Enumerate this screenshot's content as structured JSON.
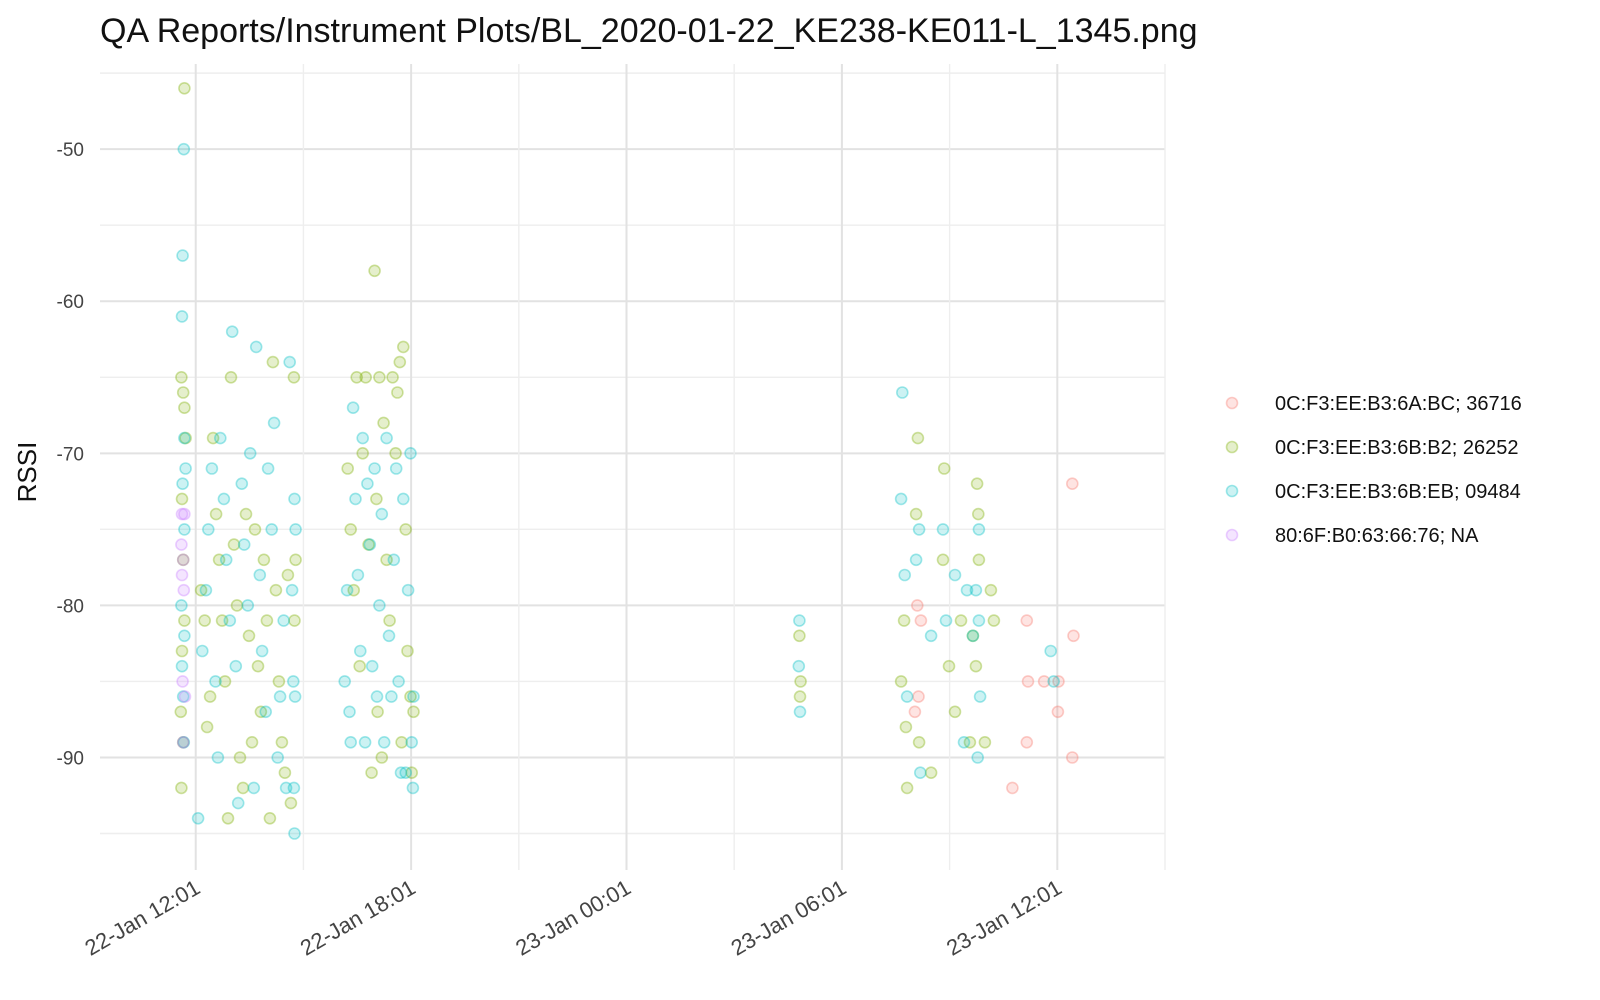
{
  "chart_data": {
    "type": "scatter",
    "title": "QA Reports/Instrument Plots/BL_2020-01-22_KE238-KE011-L_1345.png",
    "xlabel": "",
    "ylabel": "RSSI",
    "x_is_time": true,
    "xlim": [
      "2020-01-22T09:21",
      "2020-01-23T15:01"
    ],
    "ylim": [
      -97.4,
      -44.4
    ],
    "x_ticks": [
      {
        "value": "2020-01-22T12:01",
        "label": "22-Jan 12:01"
      },
      {
        "value": "2020-01-22T18:01",
        "label": "22-Jan 18:01"
      },
      {
        "value": "2020-01-23T00:01",
        "label": "23-Jan 00:01"
      },
      {
        "value": "2020-01-23T06:01",
        "label": "23-Jan 06:01"
      },
      {
        "value": "2020-01-23T12:01",
        "label": "23-Jan 12:01"
      }
    ],
    "y_ticks": [
      {
        "value": -50,
        "label": "-50"
      },
      {
        "value": -60,
        "label": "-60"
      },
      {
        "value": -70,
        "label": "-70"
      },
      {
        "value": -80,
        "label": "-80"
      },
      {
        "value": -90,
        "label": "-90"
      }
    ],
    "grid": true,
    "legend_position": "right",
    "point_opacity": 0.2,
    "series": [
      {
        "name": "0C:F3:EE:B3:6A:BC; 36716",
        "color": "#F8766D",
        "points": [
          [
            "2020-01-23T08:07",
            -80
          ],
          [
            "2020-01-23T08:13",
            -81
          ],
          [
            "2020-01-23T08:09",
            -86
          ],
          [
            "2020-01-23T08:03",
            -87
          ],
          [
            "2020-01-23T10:46",
            -92
          ],
          [
            "2020-01-23T11:10",
            -81
          ],
          [
            "2020-01-23T11:12",
            -85
          ],
          [
            "2020-01-23T11:10",
            -89
          ],
          [
            "2020-01-23T11:39",
            -85
          ],
          [
            "2020-01-23T12:02",
            -87
          ],
          [
            "2020-01-23T12:03",
            -85
          ],
          [
            "2020-01-23T12:28",
            -82
          ],
          [
            "2020-01-23T12:26",
            -72
          ],
          [
            "2020-01-23T12:26",
            -90
          ]
        ]
      },
      {
        "name": "0C:F3:EE:B3:6B:B2; 26252",
        "color": "#7CAE00",
        "points": [
          [
            "2020-01-22T11:42",
            -46
          ],
          [
            "2020-01-22T11:37",
            -65
          ],
          [
            "2020-01-22T11:40",
            -66
          ],
          [
            "2020-01-22T11:42",
            -67
          ],
          [
            "2020-01-22T11:44",
            -69
          ],
          [
            "2020-01-22T11:38",
            -73
          ],
          [
            "2020-01-22T11:40",
            -77
          ],
          [
            "2020-01-22T11:42",
            -81
          ],
          [
            "2020-01-22T11:38",
            -83
          ],
          [
            "2020-01-22T11:36",
            -87
          ],
          [
            "2020-01-22T11:40",
            -89
          ],
          [
            "2020-01-22T11:37",
            -92
          ],
          [
            "2020-01-22T12:10",
            -79
          ],
          [
            "2020-01-22T12:16",
            -81
          ],
          [
            "2020-01-22T12:20",
            -88
          ],
          [
            "2020-01-22T12:25",
            -86
          ],
          [
            "2020-01-22T12:30",
            -69
          ],
          [
            "2020-01-22T12:35",
            -74
          ],
          [
            "2020-01-22T12:40",
            -77
          ],
          [
            "2020-01-22T12:45",
            -81
          ],
          [
            "2020-01-22T12:50",
            -85
          ],
          [
            "2020-01-22T12:55",
            -94
          ],
          [
            "2020-01-22T13:00",
            -65
          ],
          [
            "2020-01-22T13:05",
            -76
          ],
          [
            "2020-01-22T13:10",
            -80
          ],
          [
            "2020-01-22T13:15",
            -90
          ],
          [
            "2020-01-22T13:20",
            -92
          ],
          [
            "2020-01-22T13:25",
            -74
          ],
          [
            "2020-01-22T13:30",
            -82
          ],
          [
            "2020-01-22T13:35",
            -89
          ],
          [
            "2020-01-22T13:40",
            -75
          ],
          [
            "2020-01-22T13:45",
            -84
          ],
          [
            "2020-01-22T13:50",
            -87
          ],
          [
            "2020-01-22T13:55",
            -77
          ],
          [
            "2020-01-22T14:00",
            -81
          ],
          [
            "2020-01-22T14:05",
            -94
          ],
          [
            "2020-01-22T14:10",
            -64
          ],
          [
            "2020-01-22T14:15",
            -79
          ],
          [
            "2020-01-22T14:20",
            -85
          ],
          [
            "2020-01-22T14:25",
            -89
          ],
          [
            "2020-01-22T14:30",
            -91
          ],
          [
            "2020-01-22T14:35",
            -78
          ],
          [
            "2020-01-22T14:40",
            -93
          ],
          [
            "2020-01-22T14:45",
            -65
          ],
          [
            "2020-01-22T14:48",
            -77
          ],
          [
            "2020-01-22T14:46",
            -81
          ],
          [
            "2020-01-22T16:15",
            -71
          ],
          [
            "2020-01-22T16:20",
            -75
          ],
          [
            "2020-01-22T16:25",
            -79
          ],
          [
            "2020-01-22T16:30",
            -65
          ],
          [
            "2020-01-22T16:35",
            -84
          ],
          [
            "2020-01-22T16:40",
            -70
          ],
          [
            "2020-01-22T16:45",
            -65
          ],
          [
            "2020-01-22T16:50",
            -76
          ],
          [
            "2020-01-22T16:55",
            -91
          ],
          [
            "2020-01-22T17:00",
            -58
          ],
          [
            "2020-01-22T17:03",
            -73
          ],
          [
            "2020-01-22T17:05",
            -87
          ],
          [
            "2020-01-22T17:08",
            -65
          ],
          [
            "2020-01-22T17:12",
            -90
          ],
          [
            "2020-01-22T17:15",
            -68
          ],
          [
            "2020-01-22T17:20",
            -77
          ],
          [
            "2020-01-22T17:25",
            -81
          ],
          [
            "2020-01-22T17:30",
            -65
          ],
          [
            "2020-01-22T17:35",
            -70
          ],
          [
            "2020-01-22T17:38",
            -66
          ],
          [
            "2020-01-22T17:42",
            -64
          ],
          [
            "2020-01-22T17:45",
            -89
          ],
          [
            "2020-01-22T17:48",
            -63
          ],
          [
            "2020-01-22T17:52",
            -75
          ],
          [
            "2020-01-22T17:55",
            -83
          ],
          [
            "2020-01-22T18:00",
            -86
          ],
          [
            "2020-01-22T18:05",
            -87
          ],
          [
            "2020-01-22T18:02",
            -91
          ],
          [
            "2020-01-23T04:50",
            -82
          ],
          [
            "2020-01-23T04:52",
            -85
          ],
          [
            "2020-01-23T04:51",
            -86
          ],
          [
            "2020-01-23T07:40",
            -85
          ],
          [
            "2020-01-23T07:45",
            -81
          ],
          [
            "2020-01-23T07:48",
            -88
          ],
          [
            "2020-01-23T07:50",
            -92
          ],
          [
            "2020-01-23T08:05",
            -74
          ],
          [
            "2020-01-23T08:08",
            -69
          ],
          [
            "2020-01-23T08:10",
            -89
          ],
          [
            "2020-01-23T08:30",
            -91
          ],
          [
            "2020-01-23T08:50",
            -77
          ],
          [
            "2020-01-23T08:52",
            -71
          ],
          [
            "2020-01-23T09:00",
            -84
          ],
          [
            "2020-01-23T09:10",
            -87
          ],
          [
            "2020-01-23T09:20",
            -81
          ],
          [
            "2020-01-23T09:35",
            -89
          ],
          [
            "2020-01-23T09:40",
            -82
          ],
          [
            "2020-01-23T09:45",
            -84
          ],
          [
            "2020-01-23T09:47",
            -72
          ],
          [
            "2020-01-23T09:49",
            -74
          ],
          [
            "2020-01-23T09:50",
            -77
          ],
          [
            "2020-01-23T10:00",
            -89
          ],
          [
            "2020-01-23T10:10",
            -79
          ],
          [
            "2020-01-23T10:15",
            -81
          ]
        ]
      },
      {
        "name": "0C:F3:EE:B3:6B:EB; 09484",
        "color": "#00BFC4",
        "points": [
          [
            "2020-01-22T11:41",
            -50
          ],
          [
            "2020-01-22T11:39",
            -57
          ],
          [
            "2020-01-22T11:38",
            -61
          ],
          [
            "2020-01-22T11:42",
            -69
          ],
          [
            "2020-01-22T11:44",
            -71
          ],
          [
            "2020-01-22T11:39",
            -72
          ],
          [
            "2020-01-22T11:42",
            -75
          ],
          [
            "2020-01-22T11:37",
            -80
          ],
          [
            "2020-01-22T11:42",
            -82
          ],
          [
            "2020-01-22T11:38",
            -84
          ],
          [
            "2020-01-22T11:40",
            -86
          ],
          [
            "2020-01-22T11:41",
            -89
          ],
          [
            "2020-01-22T12:05",
            -94
          ],
          [
            "2020-01-22T12:12",
            -83
          ],
          [
            "2020-01-22T12:18",
            -79
          ],
          [
            "2020-01-22T12:22",
            -75
          ],
          [
            "2020-01-22T12:28",
            -71
          ],
          [
            "2020-01-22T12:34",
            -85
          ],
          [
            "2020-01-22T12:38",
            -90
          ],
          [
            "2020-01-22T12:42",
            -69
          ],
          [
            "2020-01-22T12:48",
            -73
          ],
          [
            "2020-01-22T12:52",
            -77
          ],
          [
            "2020-01-22T12:58",
            -81
          ],
          [
            "2020-01-22T13:02",
            -62
          ],
          [
            "2020-01-22T13:08",
            -84
          ],
          [
            "2020-01-22T13:12",
            -93
          ],
          [
            "2020-01-22T13:18",
            -72
          ],
          [
            "2020-01-22T13:22",
            -76
          ],
          [
            "2020-01-22T13:28",
            -80
          ],
          [
            "2020-01-22T13:32",
            -70
          ],
          [
            "2020-01-22T13:38",
            -92
          ],
          [
            "2020-01-22T13:42",
            -63
          ],
          [
            "2020-01-22T13:48",
            -78
          ],
          [
            "2020-01-22T13:52",
            -83
          ],
          [
            "2020-01-22T13:58",
            -87
          ],
          [
            "2020-01-22T14:02",
            -71
          ],
          [
            "2020-01-22T14:08",
            -75
          ],
          [
            "2020-01-22T14:12",
            -68
          ],
          [
            "2020-01-22T14:18",
            -90
          ],
          [
            "2020-01-22T14:22",
            -86
          ],
          [
            "2020-01-22T14:28",
            -81
          ],
          [
            "2020-01-22T14:32",
            -92
          ],
          [
            "2020-01-22T14:38",
            -64
          ],
          [
            "2020-01-22T14:42",
            -79
          ],
          [
            "2020-01-22T14:44",
            -85
          ],
          [
            "2020-01-22T14:46",
            -73
          ],
          [
            "2020-01-22T14:48",
            -75
          ],
          [
            "2020-01-22T14:47",
            -86
          ],
          [
            "2020-01-22T14:45",
            -92
          ],
          [
            "2020-01-22T14:46",
            -95
          ],
          [
            "2020-01-22T16:10",
            -85
          ],
          [
            "2020-01-22T16:14",
            -79
          ],
          [
            "2020-01-22T16:18",
            -87
          ],
          [
            "2020-01-22T16:20",
            -89
          ],
          [
            "2020-01-22T16:24",
            -67
          ],
          [
            "2020-01-22T16:28",
            -73
          ],
          [
            "2020-01-22T16:32",
            -78
          ],
          [
            "2020-01-22T16:36",
            -83
          ],
          [
            "2020-01-22T16:40",
            -69
          ],
          [
            "2020-01-22T16:44",
            -89
          ],
          [
            "2020-01-22T16:48",
            -72
          ],
          [
            "2020-01-22T16:52",
            -76
          ],
          [
            "2020-01-22T16:56",
            -84
          ],
          [
            "2020-01-22T17:00",
            -71
          ],
          [
            "2020-01-22T17:04",
            -86
          ],
          [
            "2020-01-22T17:08",
            -80
          ],
          [
            "2020-01-22T17:12",
            -74
          ],
          [
            "2020-01-22T17:16",
            -89
          ],
          [
            "2020-01-22T17:20",
            -69
          ],
          [
            "2020-01-22T17:24",
            -82
          ],
          [
            "2020-01-22T17:28",
            -86
          ],
          [
            "2020-01-22T17:32",
            -77
          ],
          [
            "2020-01-22T17:36",
            -71
          ],
          [
            "2020-01-22T17:40",
            -85
          ],
          [
            "2020-01-22T17:44",
            -91
          ],
          [
            "2020-01-22T17:48",
            -73
          ],
          [
            "2020-01-22T17:52",
            -91
          ],
          [
            "2020-01-22T17:56",
            -79
          ],
          [
            "2020-01-22T18:00",
            -70
          ],
          [
            "2020-01-22T18:02",
            -89
          ],
          [
            "2020-01-22T18:04",
            -92
          ],
          [
            "2020-01-22T18:05",
            -86
          ],
          [
            "2020-01-23T04:50",
            -81
          ],
          [
            "2020-01-23T04:49",
            -84
          ],
          [
            "2020-01-23T04:51",
            -87
          ],
          [
            "2020-01-23T07:42",
            -66
          ],
          [
            "2020-01-23T07:40",
            -73
          ],
          [
            "2020-01-23T07:46",
            -78
          ],
          [
            "2020-01-23T07:50",
            -86
          ],
          [
            "2020-01-23T08:05",
            -77
          ],
          [
            "2020-01-23T08:10",
            -75
          ],
          [
            "2020-01-23T08:12",
            -91
          ],
          [
            "2020-01-23T08:30",
            -82
          ],
          [
            "2020-01-23T08:50",
            -75
          ],
          [
            "2020-01-23T08:55",
            -81
          ],
          [
            "2020-01-23T09:10",
            -78
          ],
          [
            "2020-01-23T09:25",
            -89
          ],
          [
            "2020-01-23T09:30",
            -79
          ],
          [
            "2020-01-23T09:40",
            -82
          ],
          [
            "2020-01-23T09:45",
            -79
          ],
          [
            "2020-01-23T09:50",
            -81
          ],
          [
            "2020-01-23T09:52",
            -86
          ],
          [
            "2020-01-23T09:48",
            -90
          ],
          [
            "2020-01-23T09:50",
            -75
          ],
          [
            "2020-01-23T11:50",
            -83
          ],
          [
            "2020-01-23T11:55",
            -85
          ]
        ]
      },
      {
        "name": "80:6F:B0:63:66:76; NA",
        "color": "#C77CFF",
        "points": [
          [
            "2020-01-22T11:38",
            -74
          ],
          [
            "2020-01-22T11:42",
            -74
          ],
          [
            "2020-01-22T11:37",
            -76
          ],
          [
            "2020-01-22T11:40",
            -77
          ],
          [
            "2020-01-22T11:41",
            -79
          ],
          [
            "2020-01-22T11:38",
            -78
          ],
          [
            "2020-01-22T11:39",
            -85
          ],
          [
            "2020-01-22T11:43",
            -86
          ],
          [
            "2020-01-22T11:40",
            -89
          ]
        ]
      }
    ]
  }
}
